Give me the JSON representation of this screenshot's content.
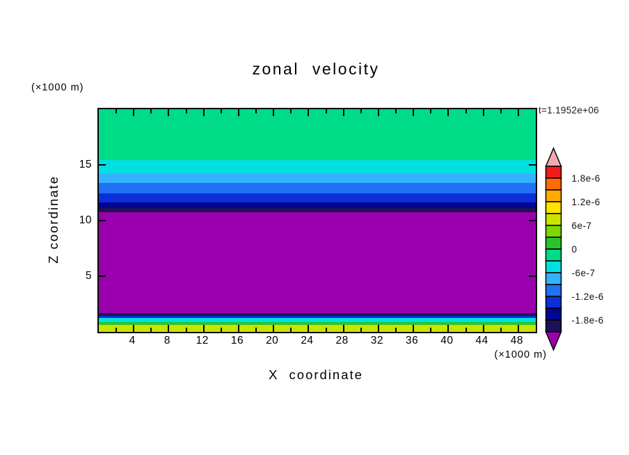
{
  "title": "zonal velocity",
  "timestamp": "t=1.1952e+06",
  "axes": {
    "x_label": "X coordinate",
    "x_unit": "(×1000 m)",
    "y_label": "Z coordinate",
    "y_unit": "(×1000 m)",
    "x_range": [
      0,
      50
    ],
    "y_range": [
      0,
      20
    ],
    "x_tick_labels": [
      4,
      8,
      12,
      16,
      20,
      24,
      28,
      32,
      36,
      40,
      44,
      48
    ],
    "x_major_step": 4,
    "x_minor_step": 2,
    "y_tick_labels": [
      5,
      10,
      15
    ]
  },
  "colorbar": {
    "labels": [
      "1.8e-6",
      "1.2e-6",
      "6e-7",
      "0",
      "-6e-7",
      "-1.2e-6",
      "-1.8e-6"
    ],
    "top_arrow_color": "#f2a9b4",
    "bottom_arrow_color": "#9a00ad",
    "segment_colors": [
      "#ee1c1c",
      "#ff6d00",
      "#ffab00",
      "#ffe400",
      "#c8e400",
      "#7fd600",
      "#2cc42c",
      "#00db87",
      "#00e0e0",
      "#35b2ff",
      "#2270f5",
      "#0b2fd6",
      "#00068f",
      "#1c1257"
    ]
  },
  "chart_data": {
    "type": "heatmap",
    "title": "zonal velocity",
    "xlabel": "X coordinate (×1000 m)",
    "ylabel": "Z coordinate (×1000 m)",
    "xlim": [
      0,
      50
    ],
    "ylim": [
      0,
      20
    ],
    "time_annotation": "t=1.1952e+06",
    "legend_position": "right",
    "contour_levels": [
      -1.8e-06,
      -1.2e-06,
      -6e-07,
      0,
      6e-07,
      1.2e-06,
      1.8e-06
    ],
    "bands": [
      {
        "z_from": 15.45,
        "z_to": 20.0,
        "value_range": "-3e-7 to 0",
        "color": "#00db87"
      },
      {
        "z_from": 14.25,
        "z_to": 15.45,
        "value_range": "-6e-7 to -3e-7",
        "color": "#00e0e0"
      },
      {
        "z_from": 13.35,
        "z_to": 14.25,
        "value_range": "-9e-7 to -6e-7",
        "color": "#35b2ff"
      },
      {
        "z_from": 12.45,
        "z_to": 13.35,
        "value_range": "-1.2e-6 to -9e-7",
        "color": "#2270f5"
      },
      {
        "z_from": 11.65,
        "z_to": 12.45,
        "value_range": "-1.5e-6 to -1.2e-6",
        "color": "#0b2fd6"
      },
      {
        "z_from": 11.1,
        "z_to": 11.65,
        "value_range": "-1.8e-6 to -1.5e-6",
        "color": "#00068f"
      },
      {
        "z_from": 10.75,
        "z_to": 11.1,
        "value_range": "-2.1e-6 to -1.8e-6",
        "color": "#1c1257"
      },
      {
        "z_from": 1.7,
        "z_to": 10.75,
        "value_range": "< -2.1e-6",
        "color": "#9a00ad"
      },
      {
        "z_from": 1.45,
        "z_to": 1.7,
        "value_range": "-2.1e-6 to -1.8e-6",
        "color": "#1c1257"
      },
      {
        "z_from": 1.25,
        "z_to": 1.45,
        "value_range": "-1.5e-6 to -1.2e-6",
        "color": "#0b2fd6"
      },
      {
        "z_from": 0.9,
        "z_to": 1.25,
        "value_range": "-6e-7 to -3e-7",
        "color": "#00e0e0"
      },
      {
        "z_from": 0.65,
        "z_to": 0.9,
        "value_range": "0 to 3e-7",
        "color": "#2cc42c"
      },
      {
        "z_from": 0.0,
        "z_to": 0.65,
        "value_range": "6e-7 to 9e-7",
        "color": "#c8e400"
      }
    ]
  }
}
